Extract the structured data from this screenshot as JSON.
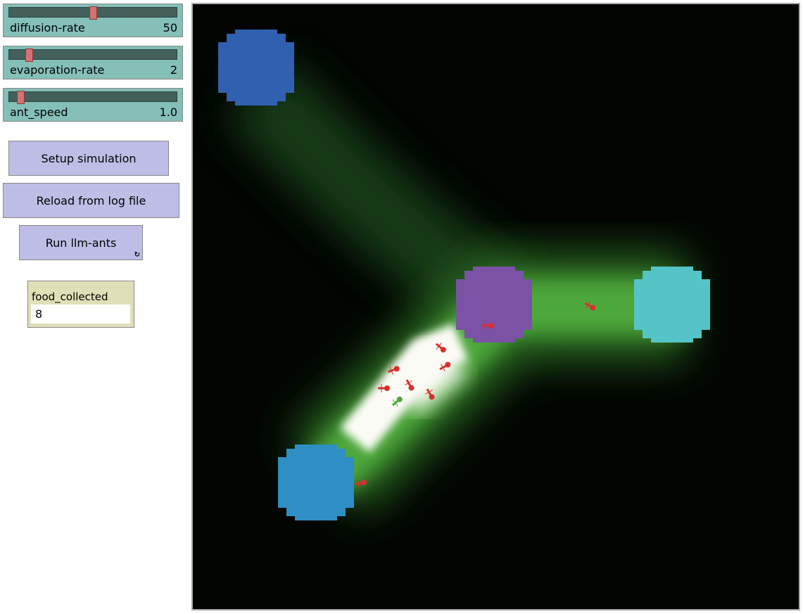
{
  "sliders": [
    {
      "label": "diffusion-rate",
      "value": "50",
      "level": 0.5
    },
    {
      "label": "evaporation-rate",
      "value": "2",
      "level": 0.1
    },
    {
      "label": "ant_speed",
      "value": "1.0",
      "level": 0.05
    }
  ],
  "buttons": {
    "setup": "Setup simulation",
    "reload": "Reload from log file",
    "run": "Run llm-ants",
    "run_forever_icon": "↻"
  },
  "monitor": {
    "label": "food_collected",
    "value": "8"
  },
  "world": {
    "background": "#000000",
    "pheromone_color": "#4fa83a",
    "ant_color": "#d8302c",
    "carrier_ant_color": "#4fa83a",
    "food_sources": [
      {
        "color": "#3160b0"
      },
      {
        "color": "#7b52a6"
      },
      {
        "color": "#55c4c6"
      },
      {
        "color": "#2f8ec4"
      }
    ]
  }
}
